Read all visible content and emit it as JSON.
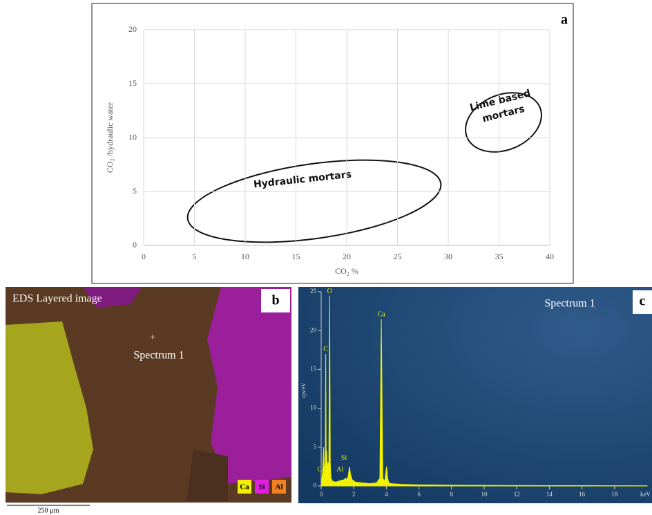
{
  "chart_data": [
    {
      "type": "scatter",
      "panel": "a",
      "xlabel": "CO₂ %",
      "ylabel": "CO₂ /hydraulic water",
      "xlim": [
        0,
        40
      ],
      "ylim": [
        0,
        20
      ],
      "xticks": [
        0,
        5,
        10,
        15,
        20,
        25,
        30,
        35,
        40
      ],
      "yticks": [
        0,
        5,
        10,
        15,
        20
      ],
      "grid": true,
      "series": [],
      "annotations": [
        "Hydraulic mortars",
        "Lime based mortars"
      ]
    },
    {
      "type": "area",
      "panel": "c",
      "title": "Spectrum 1",
      "xlabel": "keV",
      "ylabel": "cps/eV",
      "color": "#f0f000",
      "xlim": [
        0,
        20
      ],
      "ylim": [
        0,
        25
      ],
      "xticks": [
        0,
        2,
        4,
        6,
        8,
        10,
        12,
        14,
        16,
        18
      ],
      "yticks": [
        0,
        5,
        10,
        15,
        20,
        25
      ],
      "x": [
        0,
        0.1,
        0.15,
        0.2,
        0.25,
        0.28,
        0.31,
        0.34,
        0.38,
        0.42,
        0.47,
        0.52,
        0.56,
        0.6,
        0.7,
        0.9,
        1.2,
        1.4,
        1.49,
        1.55,
        1.65,
        1.74,
        1.8,
        1.9,
        2.1,
        2.5,
        3.0,
        3.4,
        3.6,
        3.69,
        3.78,
        3.9,
        4.01,
        4.08,
        4.15,
        4.3,
        5,
        6,
        8,
        10,
        12,
        14,
        16,
        18,
        20
      ],
      "values": [
        0,
        2,
        5,
        1.5,
        3,
        17,
        3,
        4.5,
        2,
        3,
        2.5,
        24.5,
        3,
        1,
        0.6,
        0.5,
        0.7,
        0.8,
        1,
        0.8,
        1.2,
        2.5,
        1.5,
        0.8,
        0.5,
        0.4,
        0.3,
        0.4,
        1,
        21.5,
        1,
        0.6,
        2.5,
        1,
        0.4,
        0.3,
        0.2,
        0.15,
        0.1,
        0.08,
        0.06,
        0.05,
        0.04,
        0.03,
        0.02
      ],
      "peak_labels": [
        {
          "text": "O",
          "x": 0.52,
          "y": 24.5
        },
        {
          "text": "C",
          "x": 0.28,
          "y": 17
        },
        {
          "text": "Ca",
          "x": 3.69,
          "y": 21.5
        },
        {
          "text": "Si",
          "x": 1.74,
          "y": 2.5
        },
        {
          "text": "Al",
          "x": 1.49,
          "y": 1
        },
        {
          "text": "Ca",
          "x": 0.34,
          "y": 1
        }
      ]
    }
  ],
  "image_panel": {
    "label": "b",
    "title": "EDS Layered image",
    "marker": "+",
    "point": "Spectrum 1",
    "legend": [
      "Ca",
      "Si",
      "Al"
    ],
    "scale_bar": "250 µm"
  }
}
